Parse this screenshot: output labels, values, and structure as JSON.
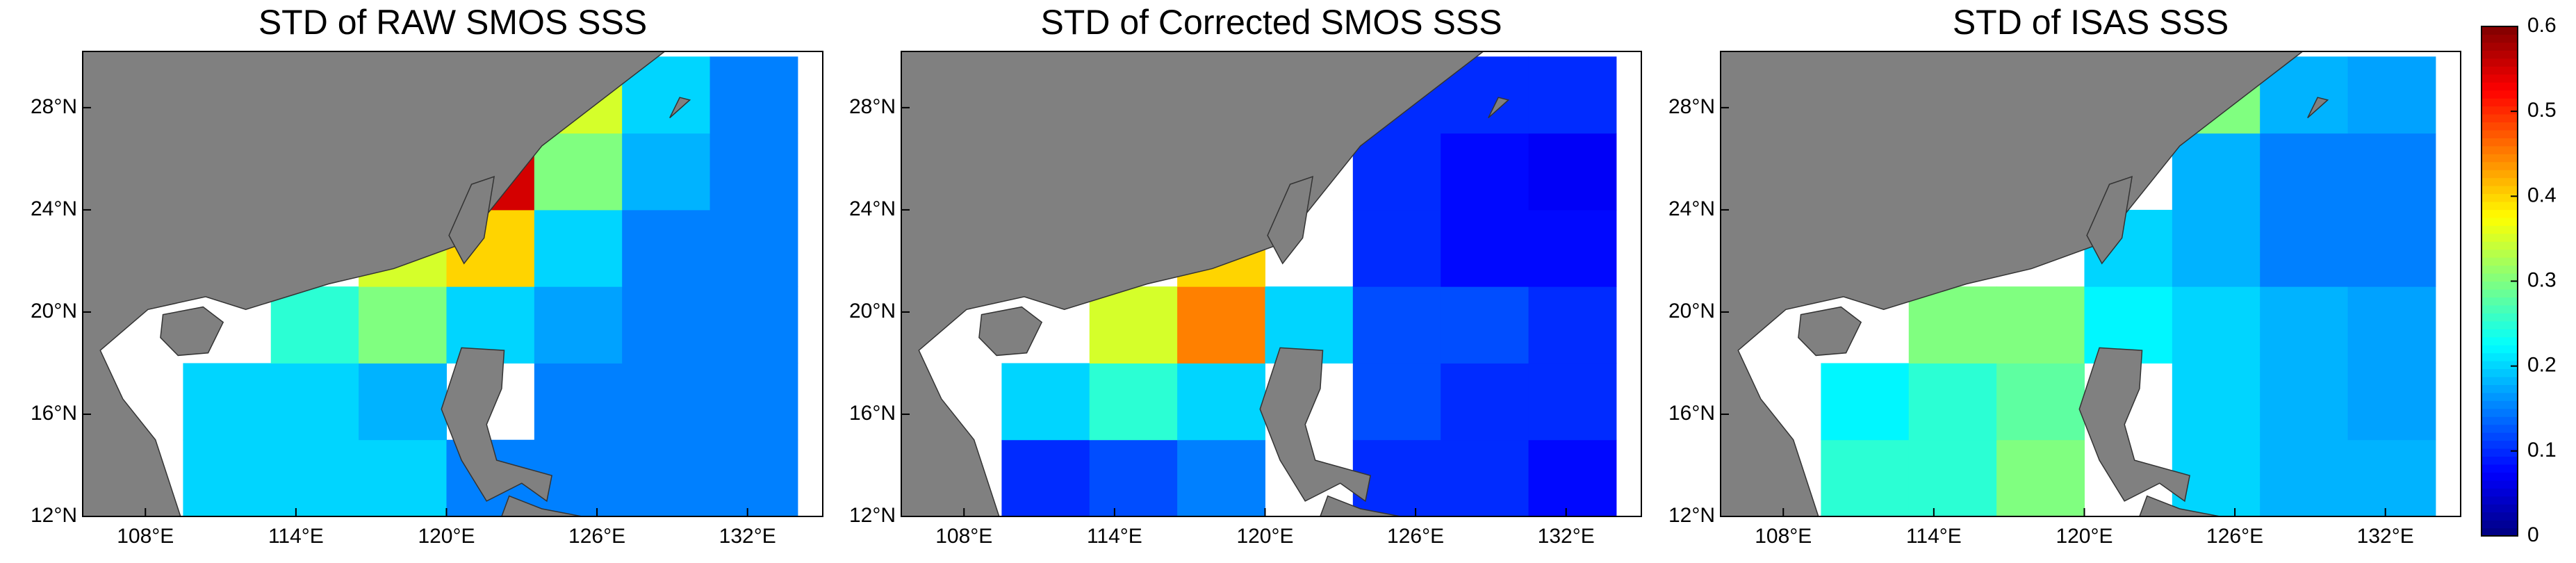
{
  "chart_data": [
    {
      "type": "heatmap",
      "title": "STD of RAW SMOS SSS",
      "xlim": [
        105.5,
        135
      ],
      "ylim": [
        12,
        30.2
      ],
      "xticks": [
        {
          "value": 108,
          "label": "108°E"
        },
        {
          "value": 114,
          "label": "114°E"
        },
        {
          "value": 120,
          "label": "120°E"
        },
        {
          "value": 126,
          "label": "126°E"
        },
        {
          "value": 132,
          "label": "132°E"
        }
      ],
      "yticks": [
        {
          "value": 12,
          "label": "12°N"
        },
        {
          "value": 16,
          "label": "16°N"
        },
        {
          "value": 20,
          "label": "20°N"
        },
        {
          "value": 24,
          "label": "24°N"
        },
        {
          "value": 28,
          "label": "28°N"
        }
      ],
      "lon_edges": [
        106,
        109.5,
        113,
        116.5,
        120,
        123.5,
        127,
        130.5,
        134
      ],
      "lat_edges": [
        12,
        15,
        18,
        21,
        24,
        27,
        30
      ],
      "values": [
        [
          null,
          0.2,
          0.2,
          0.2,
          0.15,
          0.15,
          0.15,
          0.15
        ],
        [
          null,
          0.2,
          0.2,
          0.18,
          null,
          0.15,
          0.15,
          0.15
        ],
        [
          null,
          null,
          0.25,
          0.3,
          0.2,
          0.17,
          0.15,
          0.15
        ],
        [
          null,
          null,
          null,
          0.35,
          0.4,
          0.2,
          0.15,
          0.15
        ],
        [
          null,
          null,
          null,
          null,
          0.55,
          0.3,
          0.18,
          0.15
        ],
        [
          null,
          null,
          null,
          null,
          null,
          0.35,
          0.2,
          0.15
        ]
      ]
    },
    {
      "type": "heatmap",
      "title": "STD of Corrected SMOS SSS",
      "xlim": [
        105.5,
        135
      ],
      "ylim": [
        12,
        30.2
      ],
      "xticks": [
        {
          "value": 108,
          "label": "108°E"
        },
        {
          "value": 114,
          "label": "114°E"
        },
        {
          "value": 120,
          "label": "120°E"
        },
        {
          "value": 126,
          "label": "126°E"
        },
        {
          "value": 132,
          "label": "132°E"
        }
      ],
      "yticks": [
        {
          "value": 12,
          "label": "12°N"
        },
        {
          "value": 16,
          "label": "16°N"
        },
        {
          "value": 20,
          "label": "20°N"
        },
        {
          "value": 24,
          "label": "24°N"
        },
        {
          "value": 28,
          "label": "28°N"
        }
      ],
      "lon_edges": [
        106,
        109.5,
        113,
        116.5,
        120,
        123.5,
        127,
        130.5,
        134
      ],
      "lat_edges": [
        12,
        15,
        18,
        21,
        24,
        27,
        30
      ],
      "values": [
        [
          null,
          0.1,
          0.12,
          0.15,
          null,
          0.1,
          0.1,
          0.08
        ],
        [
          null,
          0.2,
          0.25,
          0.2,
          null,
          0.12,
          0.1,
          0.1
        ],
        [
          null,
          null,
          0.35,
          0.45,
          0.2,
          0.12,
          0.12,
          0.1
        ],
        [
          null,
          null,
          null,
          0.4,
          null,
          0.1,
          0.08,
          0.08
        ],
        [
          null,
          null,
          null,
          null,
          null,
          0.1,
          0.08,
          0.07
        ],
        [
          null,
          null,
          null,
          null,
          null,
          0.1,
          0.1,
          0.1
        ]
      ]
    },
    {
      "type": "heatmap",
      "title": "STD of ISAS SSS",
      "xlim": [
        105.5,
        135
      ],
      "ylim": [
        12,
        30.2
      ],
      "xticks": [
        {
          "value": 108,
          "label": "108°E"
        },
        {
          "value": 114,
          "label": "114°E"
        },
        {
          "value": 120,
          "label": "120°E"
        },
        {
          "value": 126,
          "label": "126°E"
        },
        {
          "value": 132,
          "label": "132°E"
        }
      ],
      "yticks": [
        {
          "value": 12,
          "label": "12°N"
        },
        {
          "value": 16,
          "label": "16°N"
        },
        {
          "value": 20,
          "label": "20°N"
        },
        {
          "value": 24,
          "label": "24°N"
        },
        {
          "value": 28,
          "label": "28°N"
        }
      ],
      "lon_edges": [
        106,
        109.5,
        113,
        116.5,
        120,
        123.5,
        127,
        130.5,
        134
      ],
      "lat_edges": [
        12,
        15,
        18,
        21,
        24,
        27,
        30
      ],
      "values": [
        [
          null,
          0.25,
          0.25,
          0.3,
          null,
          0.2,
          0.18,
          0.18
        ],
        [
          null,
          0.22,
          0.25,
          0.28,
          null,
          0.2,
          0.18,
          0.17
        ],
        [
          null,
          null,
          0.3,
          0.3,
          0.22,
          0.2,
          0.18,
          0.17
        ],
        [
          null,
          null,
          null,
          null,
          0.2,
          0.18,
          0.15,
          0.15
        ],
        [
          null,
          null,
          null,
          null,
          null,
          0.18,
          0.15,
          0.15
        ],
        [
          null,
          null,
          null,
          null,
          null,
          0.3,
          0.18,
          0.17
        ]
      ]
    }
  ],
  "colorbar": {
    "ylim": [
      0,
      0.6
    ],
    "yticks": [
      0,
      0.1,
      0.2,
      0.3,
      0.4,
      0.5,
      0.6
    ],
    "colormap": "jet"
  }
}
